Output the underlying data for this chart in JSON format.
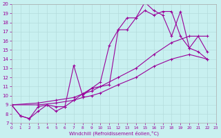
{
  "xlabel": "Windchill (Refroidissement éolien,°C)",
  "bg_color": "#c8f0f0",
  "line_color": "#990099",
  "xlim": [
    0,
    23
  ],
  "ylim": [
    7,
    20
  ],
  "xticks": [
    0,
    1,
    2,
    3,
    4,
    5,
    6,
    7,
    8,
    9,
    10,
    11,
    12,
    13,
    14,
    15,
    16,
    17,
    18,
    19,
    20,
    21,
    22,
    23
  ],
  "yticks": [
    7,
    8,
    9,
    10,
    11,
    12,
    13,
    14,
    15,
    16,
    17,
    18,
    19,
    20
  ],
  "line1_x": [
    0,
    1,
    2,
    3,
    4,
    5,
    6,
    7,
    8,
    9,
    10,
    11,
    12,
    13,
    14,
    15,
    16,
    17,
    18,
    19,
    20,
    21,
    22
  ],
  "line1_y": [
    9.0,
    7.8,
    7.5,
    8.8,
    9.0,
    8.3,
    8.8,
    13.3,
    10.0,
    10.8,
    11.0,
    11.2,
    17.2,
    17.2,
    18.5,
    20.2,
    19.3,
    18.8,
    16.5,
    19.2,
    15.2,
    16.5,
    14.8
  ],
  "line2_x": [
    0,
    1,
    2,
    3,
    4,
    5,
    6,
    7,
    8,
    9,
    10,
    11,
    12,
    13,
    14,
    15,
    16,
    17,
    18,
    19,
    20,
    21,
    22
  ],
  "line2_y": [
    9.0,
    7.8,
    7.5,
    8.3,
    9.0,
    8.8,
    8.8,
    9.5,
    10.2,
    10.8,
    11.5,
    15.5,
    17.2,
    18.5,
    18.5,
    19.3,
    18.8,
    19.2,
    19.2,
    16.5,
    15.2,
    14.8,
    14.0
  ],
  "line3_x": [
    0,
    3,
    5,
    7,
    8,
    9,
    10,
    12,
    14,
    16,
    18,
    20,
    22
  ],
  "line3_y": [
    9.0,
    9.2,
    9.5,
    9.8,
    10.2,
    10.5,
    11.0,
    12.0,
    13.0,
    14.5,
    15.8,
    16.5,
    16.5
  ],
  "line4_x": [
    0,
    3,
    5,
    7,
    8,
    9,
    10,
    12,
    14,
    16,
    18,
    20,
    22
  ],
  "line4_y": [
    9.0,
    9.0,
    9.2,
    9.5,
    9.8,
    10.0,
    10.3,
    11.2,
    12.0,
    13.2,
    14.0,
    14.5,
    14.0
  ]
}
